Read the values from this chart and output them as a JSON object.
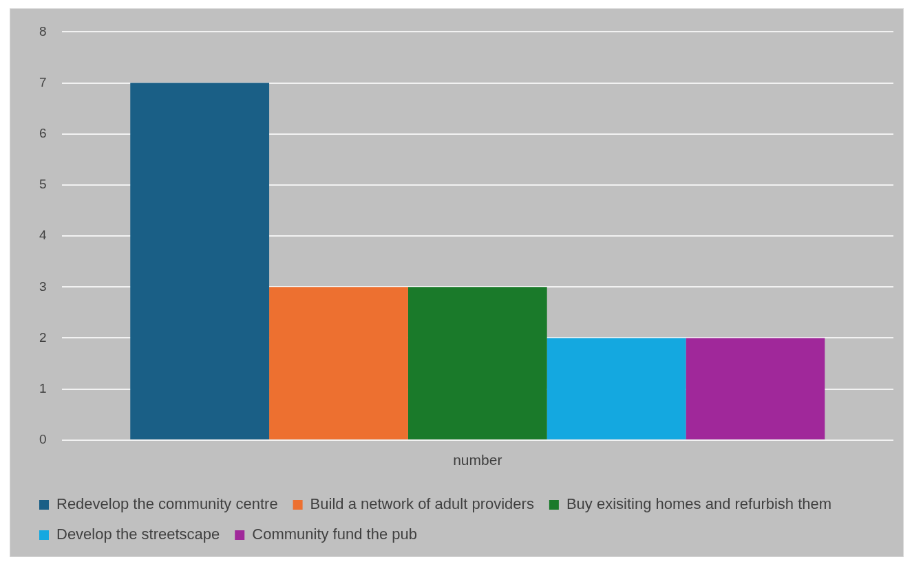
{
  "chart_data": {
    "type": "bar",
    "categories": [
      "number"
    ],
    "series": [
      {
        "name": "Redevelop the community centre",
        "color": "#1a5f86",
        "values": [
          7
        ]
      },
      {
        "name": "Build a network of adult providers",
        "color": "#ed7030",
        "values": [
          3
        ]
      },
      {
        "name": "Buy exisiting homes and refurbish them",
        "color": "#1a7a2a",
        "values": [
          3
        ]
      },
      {
        "name": "Develop the streetscape",
        "color": "#14a8e0",
        "values": [
          2
        ]
      },
      {
        "name": "Community fund the pub",
        "color": "#a0289a",
        "values": [
          2
        ]
      }
    ],
    "ylim": [
      0,
      8
    ],
    "yticks": [
      0,
      1,
      2,
      3,
      4,
      5,
      6,
      7,
      8
    ],
    "grid": "y",
    "legend": "bottom"
  }
}
